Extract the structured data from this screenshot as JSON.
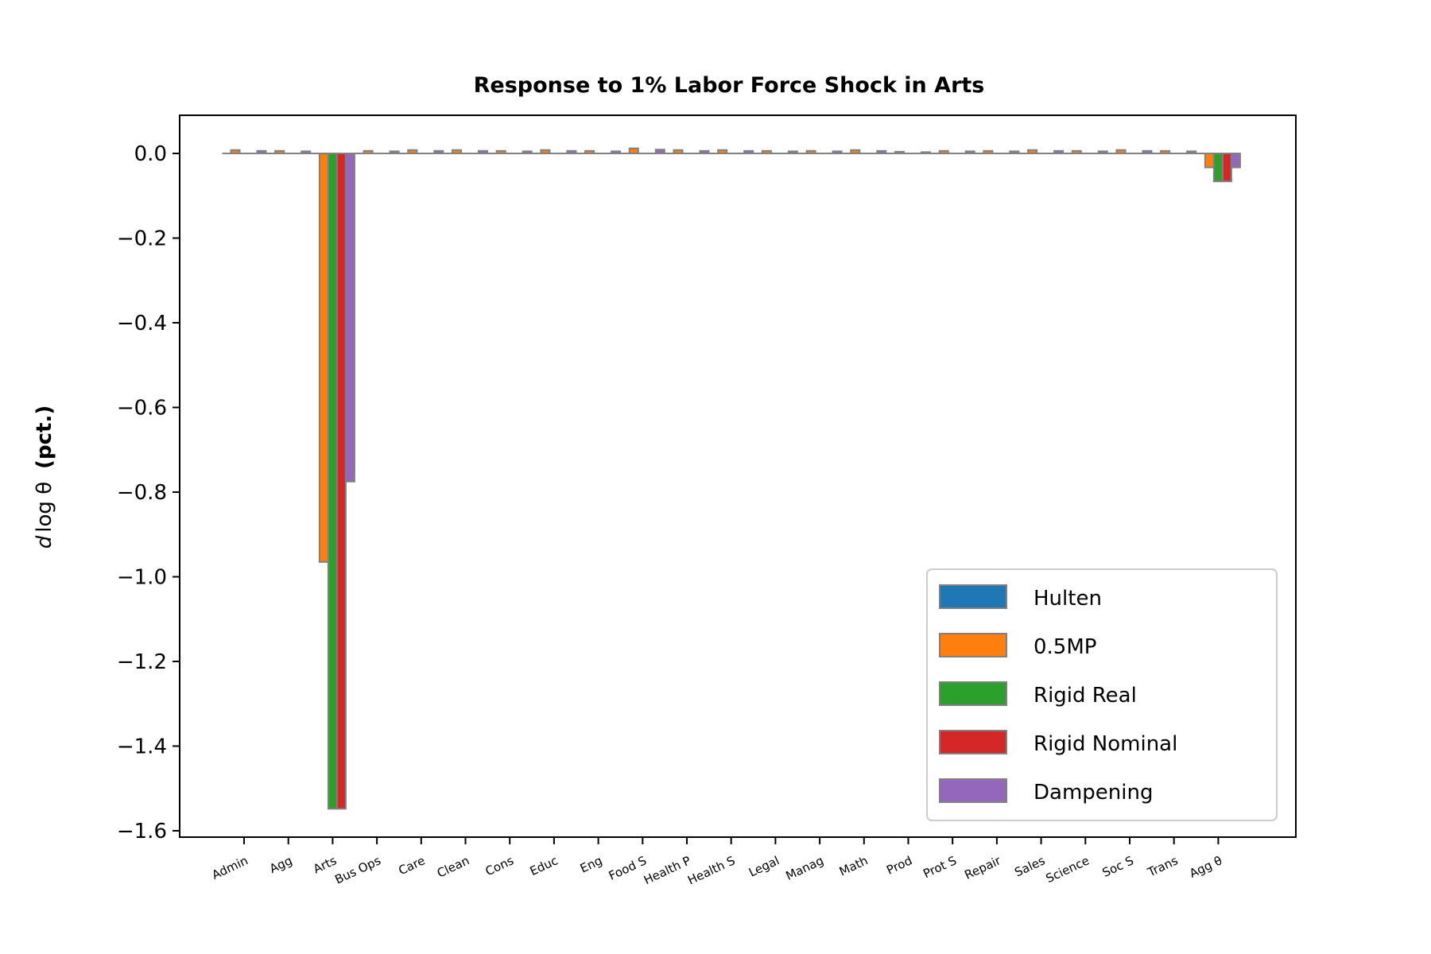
{
  "chart_data": {
    "type": "bar",
    "title": "Response to 1% Labor Force Shock in Arts",
    "ylabel": "d log θ  (pct.)",
    "ylabel_italic_part": "d",
    "ylabel_math_part": "log θ",
    "ylabel_bold_part": "(pct.)",
    "xlabel": "",
    "ylim": [
      -1.63,
      0.09
    ],
    "yticks": [
      0.0,
      -0.2,
      -0.4,
      -0.6,
      -0.8,
      -1.0,
      -1.2,
      -1.4,
      -1.6
    ],
    "ytick_labels": [
      "0.0",
      "−0.2",
      "−0.4",
      "−0.6",
      "−0.8",
      "−1.0",
      "−1.2",
      "−1.4",
      "−1.6"
    ],
    "grid": false,
    "legend_position": "lower-right",
    "categories": [
      "Admin",
      "Agg",
      "Arts",
      "Bus Ops",
      "Care",
      "Clean",
      "Cons",
      "Educ",
      "Eng",
      "Food S",
      "Health P",
      "Health S",
      "Legal",
      "Manag",
      "Math",
      "Prod",
      "Prot S",
      "Repair",
      "Sales",
      "Science",
      "Soc S",
      "Trans",
      "Agg θ"
    ],
    "bar_edge_color": "#808080",
    "series": [
      {
        "name": "Hulten",
        "color": "#1f77b4",
        "values": [
          0,
          0,
          0,
          0,
          0,
          0,
          0,
          0,
          0,
          0,
          0,
          0,
          0,
          0,
          0,
          0,
          0,
          0,
          0,
          0,
          0,
          0,
          0
        ]
      },
      {
        "name": "0.5MP",
        "color": "#ff7f0e",
        "values": [
          0.008,
          0.006,
          -0.965,
          0.006,
          0.008,
          0.008,
          0.006,
          0.008,
          0.006,
          0.012,
          0.008,
          0.008,
          0.006,
          0.006,
          0.008,
          0.004,
          0.006,
          0.006,
          0.008,
          0.006,
          0.008,
          0.006,
          -0.033
        ]
      },
      {
        "name": "Rigid Real",
        "color": "#2ca02c",
        "values": [
          0,
          0,
          -1.548,
          0,
          0,
          0,
          0,
          0,
          0,
          0,
          0,
          0,
          0,
          0,
          0,
          0,
          0,
          0,
          0,
          0,
          0,
          0,
          -0.066
        ]
      },
      {
        "name": "Rigid Nominal",
        "color": "#d62728",
        "values": [
          0,
          0,
          -1.548,
          0,
          0,
          0,
          0,
          0,
          0,
          0,
          0,
          0,
          0,
          0,
          0,
          0,
          0,
          0,
          0,
          0,
          0,
          0,
          -0.066
        ]
      },
      {
        "name": "Dampening",
        "color": "#9467bd",
        "values": [
          0.006,
          0.005,
          -0.775,
          0.005,
          0.006,
          0.006,
          0.005,
          0.006,
          0.005,
          0.009,
          0.006,
          0.006,
          0.005,
          0.005,
          0.006,
          0.003,
          0.005,
          0.005,
          0.006,
          0.005,
          0.006,
          0.005,
          -0.033
        ]
      }
    ]
  }
}
